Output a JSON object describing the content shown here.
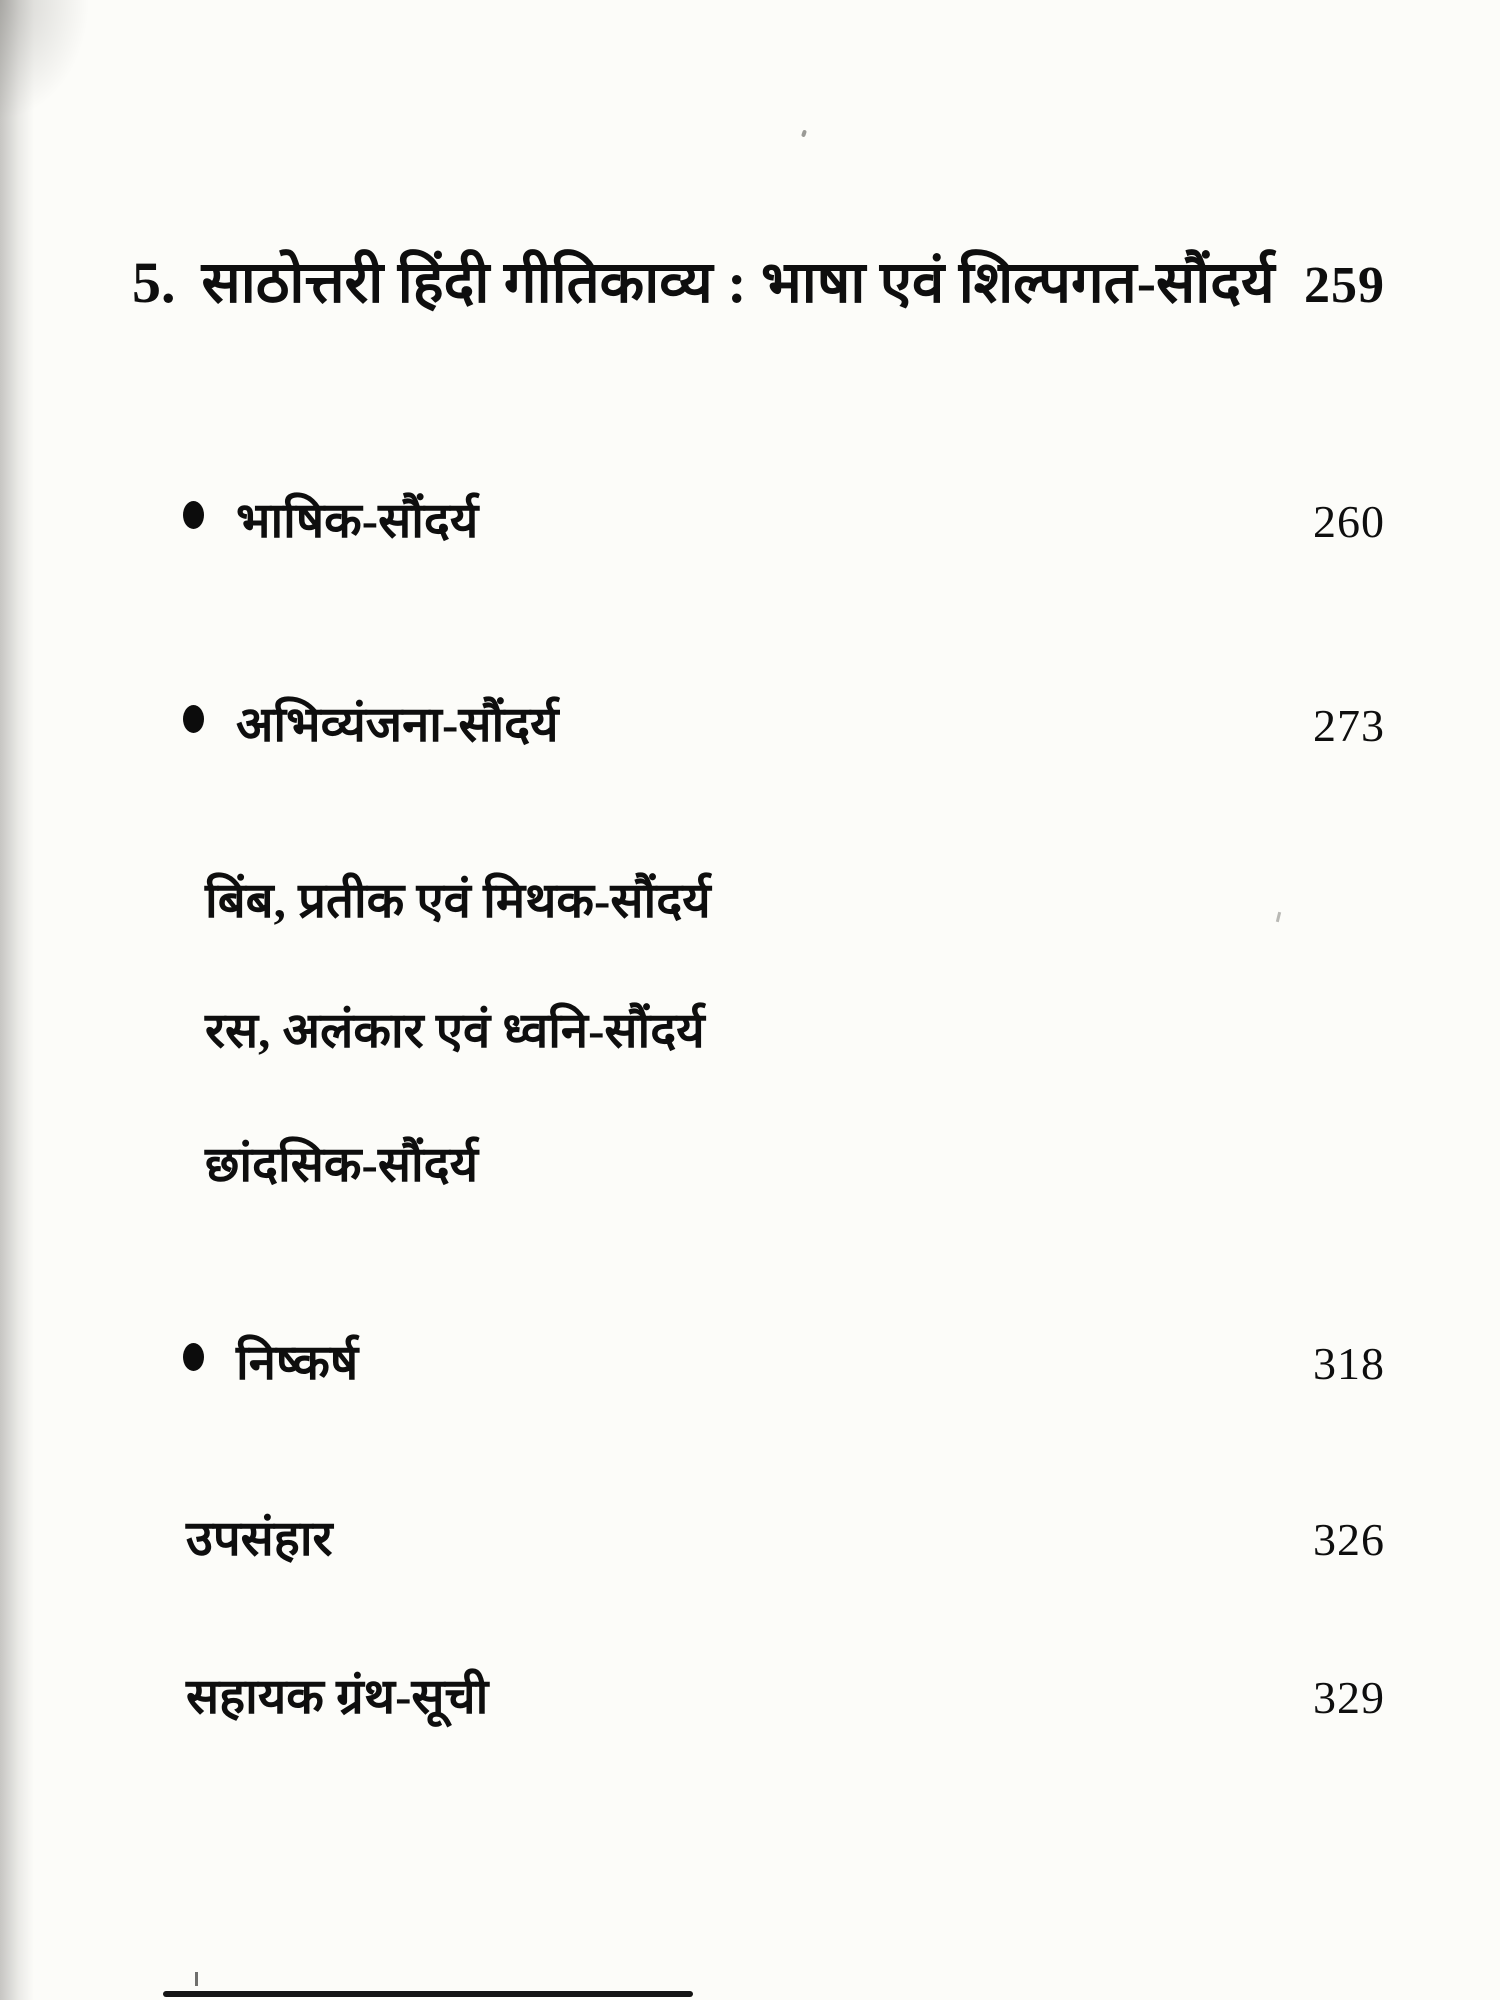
{
  "page": {
    "kind": "book-table-of-contents",
    "language": "Hindi",
    "colors": {
      "ink": "#0e0e0e",
      "paper": "#fcfcf9"
    }
  },
  "toc": {
    "chapter": {
      "number": "5.",
      "title": "साठोत्तरी हिंदी गीतिकाव्य : भाषा एवं शिल्पगत-सौंदर्य",
      "page": "259"
    },
    "entries": [
      {
        "label": "भाषिक-सौंदर्य",
        "page": "260",
        "bullet": true
      },
      {
        "label": "अभिव्यंजना-सौंदर्य",
        "page": "273",
        "bullet": true
      },
      {
        "label": "बिंब, प्रतीक एवं मिथक-सौंदर्य",
        "bullet": false
      },
      {
        "label": "रस, अलंकार एवं ध्वनि-सौंदर्य",
        "bullet": false
      },
      {
        "label": "छांदसिक-सौंदर्य",
        "bullet": false
      },
      {
        "label": "निष्कर्ष",
        "page": "318",
        "bullet": true
      },
      {
        "label": "उपसंहार",
        "page": "326",
        "bullet": false
      },
      {
        "label": "सहायक ग्रंथ-सूची",
        "page": "329",
        "bullet": false
      }
    ]
  }
}
